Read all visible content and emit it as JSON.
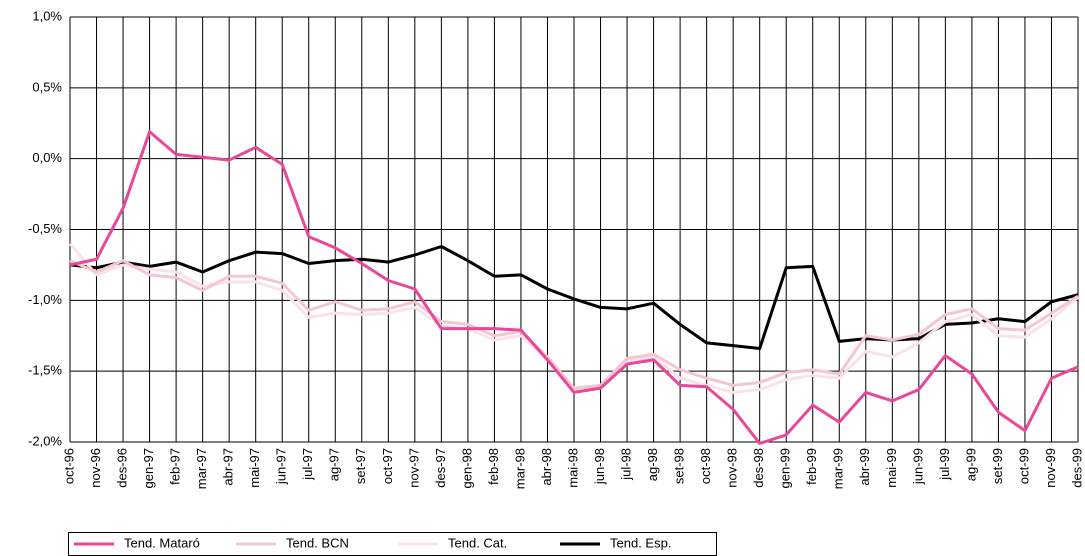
{
  "chart_data": {
    "type": "line",
    "categories": [
      "oct-96",
      "nov-96",
      "des-96",
      "gen-97",
      "feb-97",
      "mar-97",
      "abr-97",
      "mai-97",
      "jun-97",
      "jul-97",
      "ag-97",
      "set-97",
      "oct-97",
      "nov-97",
      "des-97",
      "gen-98",
      "feb-98",
      "mar-98",
      "abr-98",
      "mai-98",
      "jun-98",
      "jul-98",
      "ag-98",
      "set-98",
      "oct-98",
      "nov-98",
      "des-98",
      "gen-99",
      "feb-99",
      "mar-99",
      "abr-99",
      "mai-99",
      "jun-99",
      "jul-99",
      "ag-99",
      "set-99",
      "oct-99",
      "nov-99",
      "des-99"
    ],
    "series": [
      {
        "name": "Tend. Mataró",
        "color": "#e8489a",
        "values": [
          -0.75,
          -0.71,
          -0.35,
          0.19,
          0.03,
          0.01,
          -0.01,
          0.08,
          -0.04,
          -0.55,
          -0.63,
          -0.74,
          -0.86,
          -0.92,
          -1.2,
          -1.2,
          -1.2,
          -1.21,
          -1.42,
          -1.65,
          -1.62,
          -1.45,
          -1.42,
          -1.6,
          -1.61,
          -1.77,
          -2.01,
          -1.95,
          -1.74,
          -1.86,
          -1.65,
          -1.71,
          -1.63,
          -1.39,
          -1.52,
          -1.79,
          -1.92,
          -1.55,
          -1.47
        ]
      },
      {
        "name": "Tend. BCN",
        "color": "#f4c6cf",
        "values": [
          -0.72,
          -0.8,
          -0.72,
          -0.82,
          -0.84,
          -0.93,
          -0.83,
          -0.83,
          -0.88,
          -1.07,
          -1.01,
          -1.07,
          -1.06,
          -1.01,
          -1.15,
          -1.17,
          -1.25,
          -1.22,
          -1.4,
          -1.62,
          -1.6,
          -1.41,
          -1.38,
          -1.49,
          -1.55,
          -1.6,
          -1.58,
          -1.51,
          -1.49,
          -1.52,
          -1.25,
          -1.28,
          -1.24,
          -1.1,
          -1.06,
          -1.2,
          -1.21,
          -1.09,
          -0.97
        ]
      },
      {
        "name": "Tend. Cat.",
        "color": "#f9e3e8",
        "values": [
          -0.6,
          -0.82,
          -0.75,
          -0.78,
          -0.8,
          -0.9,
          -0.87,
          -0.87,
          -0.93,
          -1.12,
          -1.09,
          -1.1,
          -1.09,
          -1.05,
          -1.18,
          -1.2,
          -1.28,
          -1.25,
          -1.42,
          -1.63,
          -1.62,
          -1.43,
          -1.4,
          -1.55,
          -1.6,
          -1.65,
          -1.63,
          -1.56,
          -1.53,
          -1.55,
          -1.36,
          -1.4,
          -1.3,
          -1.15,
          -1.1,
          -1.25,
          -1.26,
          -1.13,
          -0.98
        ]
      },
      {
        "name": "Tend. Esp.",
        "color": "#000000",
        "values": [
          -0.75,
          -0.77,
          -0.73,
          -0.76,
          -0.73,
          -0.8,
          -0.72,
          -0.66,
          -0.67,
          -0.74,
          -0.72,
          -0.71,
          -0.73,
          -0.68,
          -0.62,
          -0.72,
          -0.83,
          -0.82,
          -0.92,
          -0.99,
          -1.05,
          -1.06,
          -1.02,
          -1.17,
          -1.3,
          -1.32,
          -1.34,
          -0.77,
          -0.76,
          -1.29,
          -1.27,
          -1.28,
          -1.27,
          -1.17,
          -1.16,
          -1.13,
          -1.15,
          -1.01,
          -0.96
        ]
      }
    ],
    "ylim": [
      -2.0,
      1.0
    ],
    "yticks": [
      {
        "value": -2.0,
        "label": "-2,0%"
      },
      {
        "value": -1.5,
        "label": "-1,5%"
      },
      {
        "value": -1.0,
        "label": "-1,0%"
      },
      {
        "value": -0.5,
        "label": "-0,5%"
      },
      {
        "value": 0,
        "label": "0,0%"
      },
      {
        "value": 0.5,
        "label": "0,5%"
      },
      {
        "value": 1.0,
        "label": "1,0%"
      }
    ],
    "grid": true,
    "legend": "bottom"
  }
}
